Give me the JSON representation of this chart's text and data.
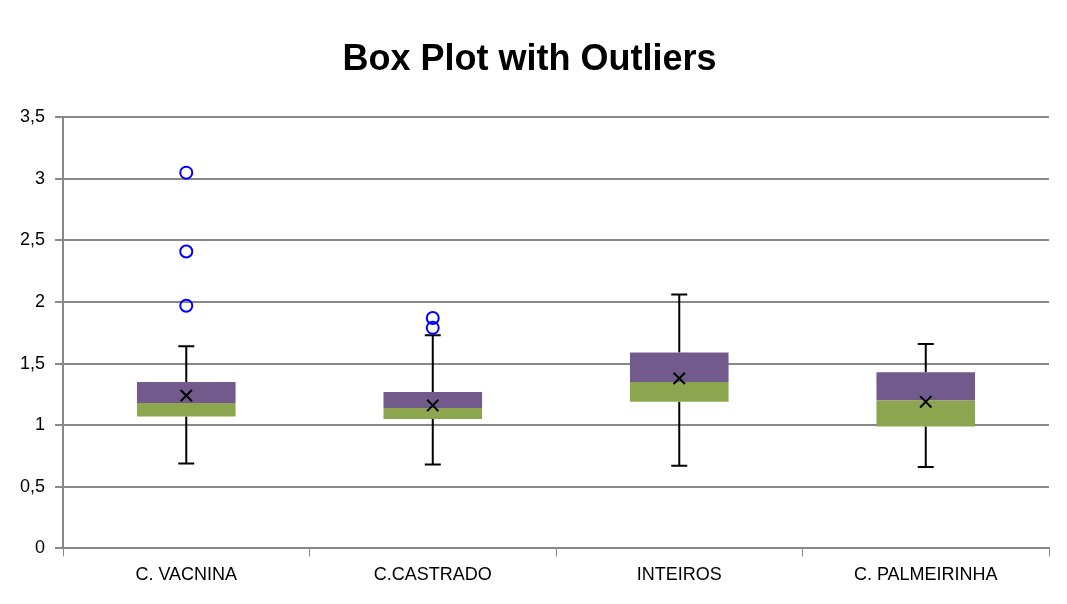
{
  "chart_data": {
    "type": "box",
    "title": "Box Plot with Outliers",
    "categories": [
      "C. VACNINA",
      "C.CASTRADO",
      "INTEIROS",
      "C. PALMEIRINHA"
    ],
    "series": [
      {
        "color": "#735a8c",
        "colors": [
          "#8ba64f",
          "#8ba64f",
          "#8ba64f",
          "#8ba64f"
        ],
        "boxes": [
          {
            "low": 0.69,
            "q1": 1.07,
            "median": 1.18,
            "q3": 1.35,
            "high": 1.64,
            "mean": 1.24,
            "outliers": [
              1.97,
              2.41,
              3.05
            ]
          },
          {
            "low": 0.68,
            "q1": 1.05,
            "median": 1.14,
            "q3": 1.27,
            "high": 1.73,
            "mean": 1.16,
            "outliers": [
              1.79,
              1.87
            ]
          },
          {
            "low": 0.67,
            "q1": 1.19,
            "median": 1.35,
            "q3": 1.59,
            "high": 2.06,
            "mean": 1.38
          },
          {
            "low": 0.66,
            "q1": 0.99,
            "median": 1.2,
            "q3": 1.43,
            "high": 1.66,
            "mean": 1.19
          }
        ]
      }
    ],
    "ylim": [
      0,
      3.5
    ],
    "yticks": [
      0,
      {
        "value": 0.5,
        "label": "0,5"
      },
      1,
      {
        "value": 1.5,
        "label": "1,5"
      },
      2,
      {
        "value": 2.5,
        "label": "2,5"
      },
      3,
      {
        "value": 3.5,
        "label": "3,5"
      }
    ],
    "grid": "y",
    "legend": false,
    "marker": "circle"
  }
}
